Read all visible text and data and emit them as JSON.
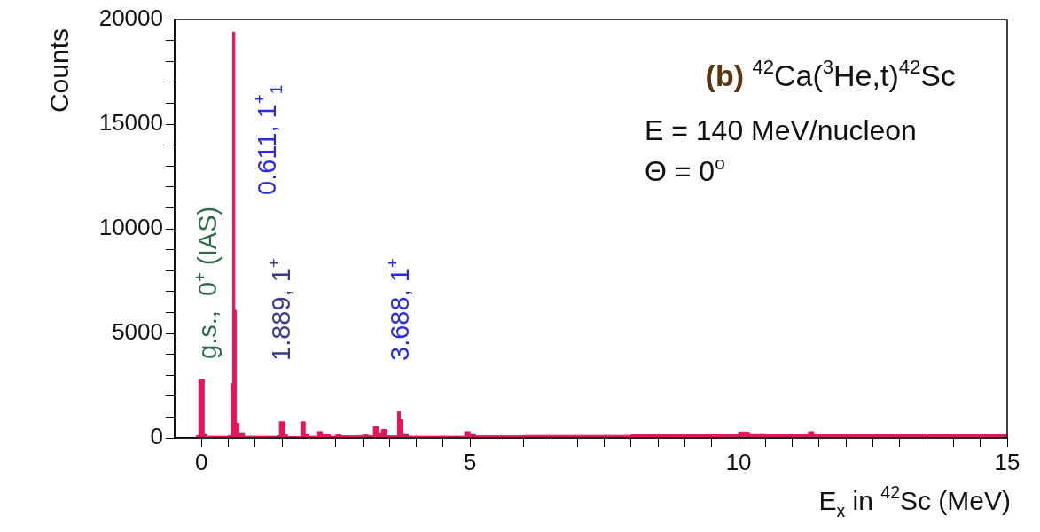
{
  "chart_data": {
    "type": "histogram",
    "title": "(b) $^{42}$Ca($^{3}$He,t)$^{42}$Sc",
    "xlabel": "E$_{x}$ in $^{42}$Sc (MeV)",
    "ylabel": "Counts",
    "color": "#e0185a",
    "bins": [
      -0.5,
      -0.1,
      -0.05,
      0.05,
      0.1,
      0.5,
      0.55,
      0.58,
      0.62,
      0.65,
      0.7,
      0.8,
      1.4,
      1.45,
      1.55,
      1.6,
      1.85,
      1.93,
      2.0,
      2.15,
      2.25,
      2.4,
      2.5,
      2.6,
      3.0,
      3.1,
      3.2,
      3.3,
      3.35,
      3.45,
      3.65,
      3.7,
      3.75,
      3.85,
      4.9,
      5.0,
      5.1,
      6,
      7,
      8,
      8.8,
      9.5,
      10,
      10.2,
      10.5,
      11,
      11.3,
      11.4,
      12,
      13,
      14,
      15
    ],
    "values": [
      0,
      100,
      2800,
      200,
      80,
      100,
      2600,
      19400,
      6100,
      700,
      250,
      80,
      100,
      770,
      150,
      60,
      770,
      150,
      80,
      300,
      150,
      80,
      150,
      100,
      150,
      100,
      550,
      250,
      400,
      100,
      1250,
      900,
      200,
      80,
      300,
      200,
      100,
      120,
      120,
      150,
      150,
      170,
      280,
      200,
      180,
      170,
      300,
      170,
      170,
      170,
      170
    ],
    "xlim": [
      -0.5,
      15
    ],
    "ylim": [
      0,
      20000
    ],
    "xticks": [
      0,
      {
        "value": 0.5,
        "label": null
      },
      {
        "value": 1,
        "label": null
      },
      {
        "value": 1.5,
        "label": null
      },
      {
        "value": 2,
        "label": null
      },
      {
        "value": 2.5,
        "label": null
      },
      {
        "value": 3,
        "label": null
      },
      {
        "value": 3.5,
        "label": null
      },
      {
        "value": 4,
        "label": null
      },
      {
        "value": 4.5,
        "label": null
      },
      5,
      {
        "value": 5.5,
        "label": null
      },
      {
        "value": 6,
        "label": null
      },
      {
        "value": 6.5,
        "label": null
      },
      {
        "value": 7,
        "label": null
      },
      {
        "value": 7.5,
        "label": null
      },
      {
        "value": 8,
        "label": null
      },
      {
        "value": 8.5,
        "label": null
      },
      {
        "value": 9,
        "label": null
      },
      {
        "value": 9.5,
        "label": null
      },
      10,
      {
        "value": 10.5,
        "label": null
      },
      {
        "value": 11,
        "label": null
      },
      {
        "value": 11.5,
        "label": null
      },
      {
        "value": 12,
        "label": null
      },
      {
        "value": 12.5,
        "label": null
      },
      {
        "value": 13,
        "label": null
      },
      {
        "value": 13.5,
        "label": null
      },
      {
        "value": 14,
        "label": null
      },
      {
        "value": 14.5,
        "label": null
      },
      15
    ],
    "yticks": [
      0,
      {
        "value": 1000,
        "label": null
      },
      {
        "value": 2000,
        "label": null
      },
      {
        "value": 3000,
        "label": null
      },
      {
        "value": 4000,
        "label": null
      },
      5000,
      {
        "value": 6000,
        "label": null
      },
      {
        "value": 7000,
        "label": null
      },
      {
        "value": 8000,
        "label": null
      },
      {
        "value": 9000,
        "label": null
      },
      10000,
      {
        "value": 11000,
        "label": null
      },
      {
        "value": 12000,
        "label": null
      },
      {
        "value": 13000,
        "label": null
      },
      {
        "value": 14000,
        "label": null
      },
      15000,
      {
        "value": 16000,
        "label": null
      },
      {
        "value": 17000,
        "label": null
      },
      {
        "value": 18000,
        "label": null
      },
      {
        "value": 19000,
        "label": null
      },
      20000
    ],
    "annotations": [
      "g.s.,  0$^{+}$ (IAS)",
      "0.611, 1$^{+}$$_{1}$",
      "1.889, 1$^{+}$",
      "3.688, 1$^{+}$",
      "E = 140 MeV/nucleon",
      "Θ = 0$^{o}$"
    ]
  }
}
